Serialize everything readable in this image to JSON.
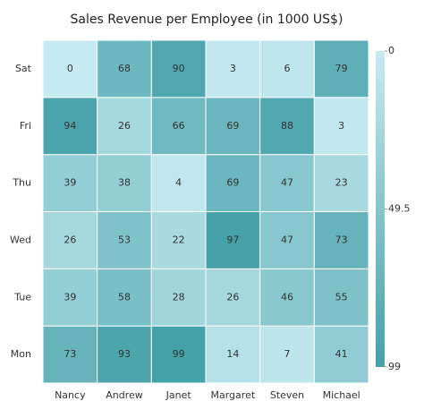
{
  "chart_data": {
    "type": "heatmap",
    "title": "Sales Revenue per Employee (in 1000 US$)",
    "x_categories": [
      "Nancy",
      "Andrew",
      "Janet",
      "Margaret",
      "Steven",
      "Michael"
    ],
    "y_categories": [
      "Mon",
      "Tue",
      "Wed",
      "Thu",
      "Fri",
      "Sat"
    ],
    "values": [
      [
        73,
        93,
        99,
        14,
        7,
        41
      ],
      [
        39,
        58,
        28,
        26,
        46,
        55
      ],
      [
        26,
        53,
        22,
        97,
        47,
        73
      ],
      [
        39,
        38,
        4,
        69,
        47,
        23
      ],
      [
        94,
        26,
        66,
        69,
        88,
        3
      ],
      [
        0,
        68,
        90,
        3,
        6,
        79
      ]
    ],
    "colorbar": {
      "lim": [
        0,
        99
      ],
      "ticks": [
        0,
        49.5,
        99
      ],
      "colors": [
        "#c6eaf1",
        "#44a0a9"
      ]
    }
  }
}
